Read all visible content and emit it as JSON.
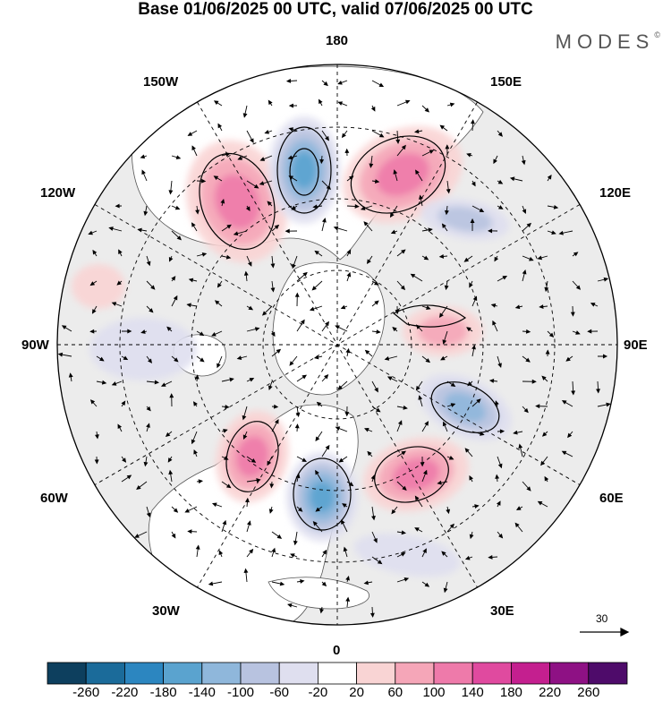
{
  "title": "Base 01/06/2025 00 UTC, valid 07/06/2025 00 UTC",
  "brand": "MODES",
  "brand_mark": "©",
  "longitude_labels": {
    "top": "180",
    "bottom": "0",
    "left": "90W",
    "right": "90E",
    "upper_left_1": "150W",
    "upper_left_2": "120W",
    "upper_right_1": "150E",
    "upper_right_2": "120E",
    "lower_left_1": "60W",
    "lower_left_2": "30W",
    "lower_right_1": "60E",
    "lower_right_2": "30E"
  },
  "reference_vector": "30",
  "colorbar": {
    "labels": [
      "-260",
      "-220",
      "-180",
      "-140",
      "-100",
      "-60",
      "-20",
      "20",
      "60",
      "100",
      "140",
      "180",
      "220",
      "260"
    ],
    "colors": [
      "#0d3f5e",
      "#1b6b9a",
      "#2c86c0",
      "#5aa3cf",
      "#8fb7db",
      "#b8c3e0",
      "#dfdfef",
      "#ffffff",
      "#f9d4d4",
      "#f5a6b8",
      "#ee7aaa",
      "#e04a9f",
      "#c41f8f",
      "#8e1184",
      "#4e0b6a"
    ]
  },
  "map_colors": {
    "land": "#ececec",
    "ocean": "#ffffff",
    "grid": "#000000",
    "coast": "#555555"
  },
  "anomalies": [
    {
      "kind": "pos",
      "level": 3,
      "label": "high-north-pacific-west"
    },
    {
      "kind": "neg",
      "level": 4,
      "label": "low-north-pacific"
    },
    {
      "kind": "pos",
      "level": 3,
      "label": "high-northeast-siberia"
    },
    {
      "kind": "neg",
      "level": 2,
      "label": "low-east-siberia"
    },
    {
      "kind": "neg",
      "level": 3,
      "label": "low-west-siberia"
    },
    {
      "kind": "pos",
      "level": 2,
      "label": "high-central-siberia"
    },
    {
      "kind": "pos",
      "level": 3,
      "label": "high-scandinavia"
    },
    {
      "kind": "neg",
      "level": 4,
      "label": "low-north-atlantic"
    },
    {
      "kind": "pos",
      "level": 3,
      "label": "high-greenland-south"
    },
    {
      "kind": "neg",
      "level": 1,
      "label": "low-canada"
    },
    {
      "kind": "pos",
      "level": 1,
      "label": "high-alaska"
    },
    {
      "kind": "neg",
      "level": 1,
      "label": "low-europe-south"
    }
  ]
}
